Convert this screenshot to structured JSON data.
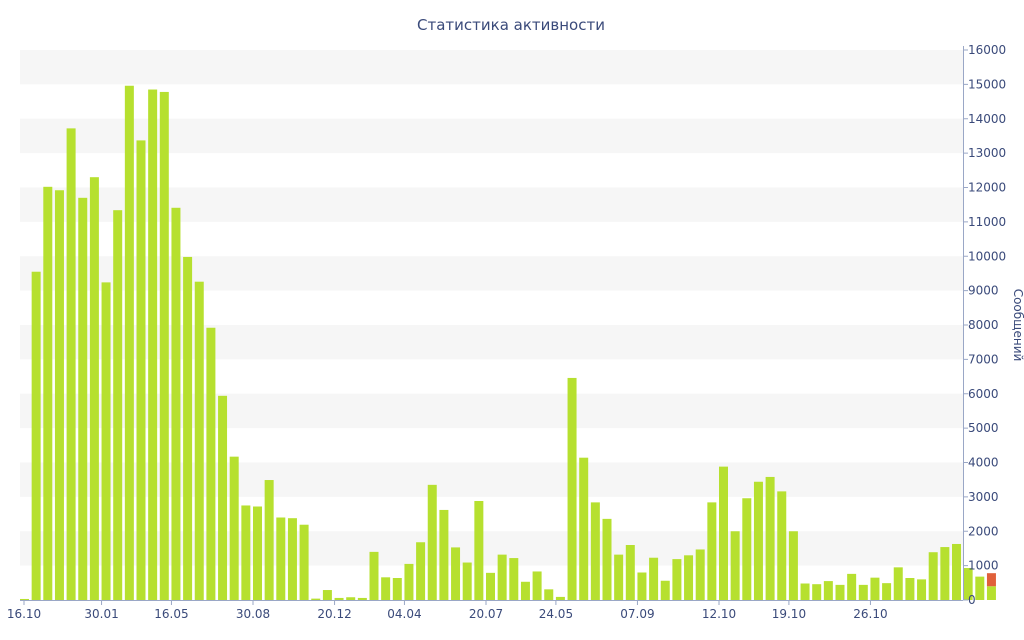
{
  "chart_data": {
    "type": "bar",
    "title": "Статистика активности",
    "ylabel": "Сообщений",
    "xlabel": "",
    "ylim": [
      0,
      16000
    ],
    "y_ticks": [
      "0",
      "1000",
      "2000",
      "3000",
      "4000",
      "5000",
      "6000",
      "7000",
      "8000",
      "9000",
      "10000",
      "11000",
      "12000",
      "13000",
      "14000",
      "15000",
      "16000"
    ],
    "x_tick_labels": [
      {
        "label": "16.10",
        "index": 0
      },
      {
        "label": "30.01",
        "index": 7
      },
      {
        "label": "16.05",
        "index": 13
      },
      {
        "label": "30.08",
        "index": 20
      },
      {
        "label": "20.12",
        "index": 27
      },
      {
        "label": "04.04",
        "index": 33
      },
      {
        "label": "20.07",
        "index": 40
      },
      {
        "label": "24.05",
        "index": 46
      },
      {
        "label": "07.09",
        "index": 53
      },
      {
        "label": "12.10",
        "index": 60
      },
      {
        "label": "19.10",
        "index": 66
      },
      {
        "label": "26.10",
        "index": 73
      }
    ],
    "values": [
      30,
      9550,
      12020,
      11920,
      13720,
      11700,
      12300,
      9240,
      11340,
      14960,
      13370,
      14850,
      14780,
      11410,
      9980,
      9260,
      7920,
      5940,
      4170,
      2750,
      2720,
      3490,
      2400,
      2380,
      2190,
      40,
      290,
      60,
      80,
      60,
      1400,
      660,
      640,
      1050,
      1680,
      3350,
      2620,
      1530,
      1090,
      2880,
      790,
      1320,
      1220,
      530,
      830,
      310,
      90,
      6460,
      4140,
      2840,
      2360,
      1320,
      1600,
      800,
      1230,
      560,
      1190,
      1300,
      1470,
      2840,
      3880,
      2000,
      2960,
      3440,
      3580,
      3160,
      2000,
      480,
      460,
      550,
      440,
      760,
      440,
      650,
      490,
      950,
      640,
      600,
      1390,
      1540,
      1630,
      930,
      680,
      400
    ],
    "highlight_last": {
      "value": 780,
      "base": 400
    },
    "colors": {
      "bar": "#b6e02f",
      "bar_highlight": "#e0603a",
      "band": "#f6f6f6",
      "axis": "#9aa7c6",
      "text": "#3a4a7a"
    },
    "grid": "alternating-bands",
    "y_axis_position": "right"
  }
}
